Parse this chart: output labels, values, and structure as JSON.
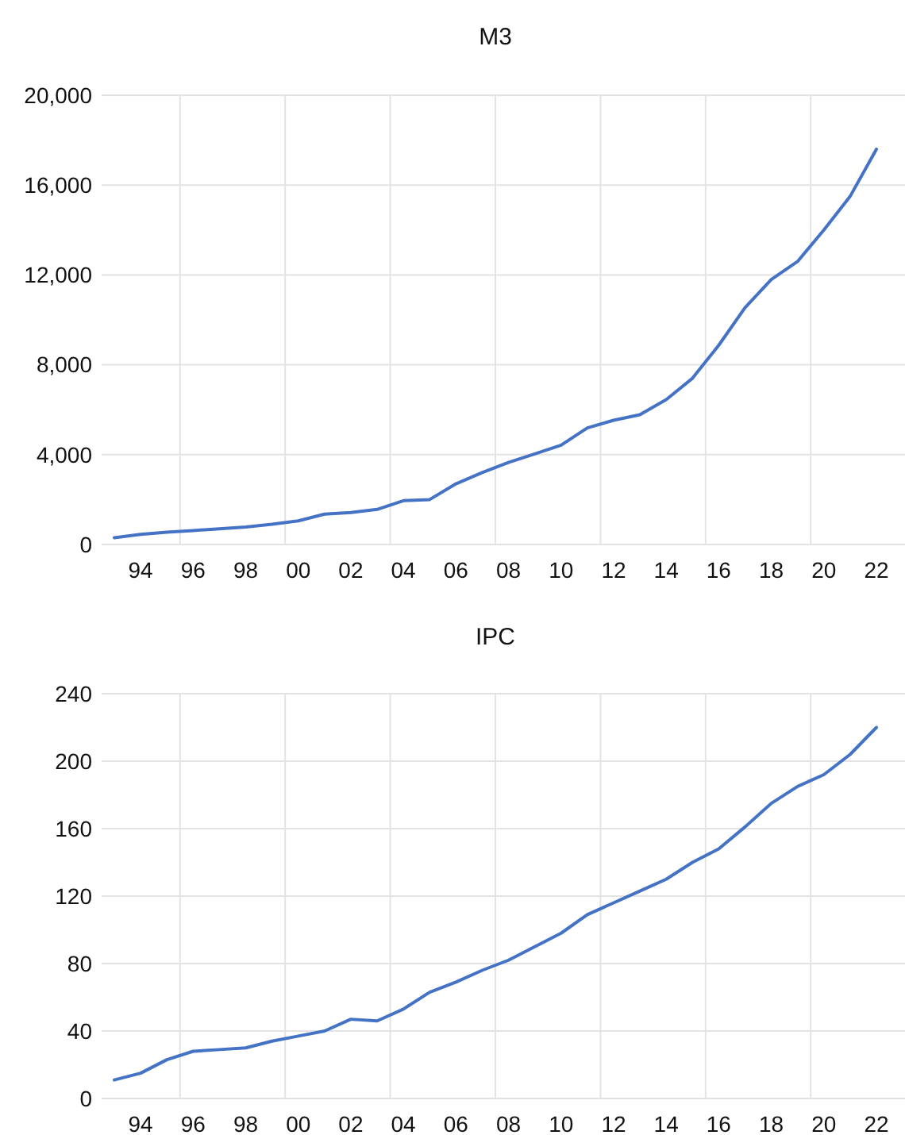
{
  "chart_data": [
    {
      "type": "line",
      "title": "M3",
      "categories": [
        null,
        "94",
        null,
        "96",
        null,
        "98",
        null,
        "00",
        null,
        "02",
        null,
        "04",
        null,
        "06",
        null,
        "08",
        null,
        "10",
        null,
        "12",
        null,
        "14",
        null,
        "16",
        null,
        "18",
        null,
        "20",
        null,
        "22"
      ],
      "series": [
        {
          "color": "#4472c4",
          "values": [
            300,
            450,
            550,
            620,
            700,
            780,
            900,
            1050,
            1350,
            1420,
            1560,
            1950,
            2000,
            2700,
            3200,
            3650,
            4030,
            4420,
            5190,
            5530,
            5780,
            6450,
            7400,
            8870,
            10540,
            11800,
            12600,
            14000,
            15500,
            17600
          ]
        }
      ],
      "ylim": [
        0,
        20000
      ],
      "yticks": [
        {
          "value": 0,
          "label": "0"
        },
        {
          "value": 4000,
          "label": "4,000"
        },
        {
          "value": 8000,
          "label": "8,000"
        },
        {
          "value": 12000,
          "label": "12,000"
        },
        {
          "value": 16000,
          "label": "16,000"
        },
        {
          "value": 20000,
          "label": "20,000"
        }
      ],
      "grid": true,
      "marker": "none",
      "line_style": "solid"
    },
    {
      "type": "line",
      "title": "IPC",
      "categories": [
        null,
        "94",
        null,
        "96",
        null,
        "98",
        null,
        "00",
        null,
        "02",
        null,
        "04",
        null,
        "06",
        null,
        "08",
        null,
        "10",
        null,
        "12",
        null,
        "14",
        null,
        "16",
        null,
        "18",
        null,
        "20",
        null,
        "22"
      ],
      "series": [
        {
          "color": "#4472c4",
          "values": [
            11,
            15,
            23,
            28,
            29,
            30,
            34,
            37,
            40,
            47,
            46,
            53,
            63,
            69,
            76,
            82,
            90,
            98,
            109,
            116,
            123,
            130,
            140,
            148,
            161,
            175,
            185,
            192,
            204,
            220
          ]
        }
      ],
      "ylim": [
        0,
        240
      ],
      "yticks": [
        0,
        40,
        80,
        120,
        160,
        200,
        240
      ],
      "grid": true,
      "marker": "none",
      "line_style": "solid"
    }
  ]
}
